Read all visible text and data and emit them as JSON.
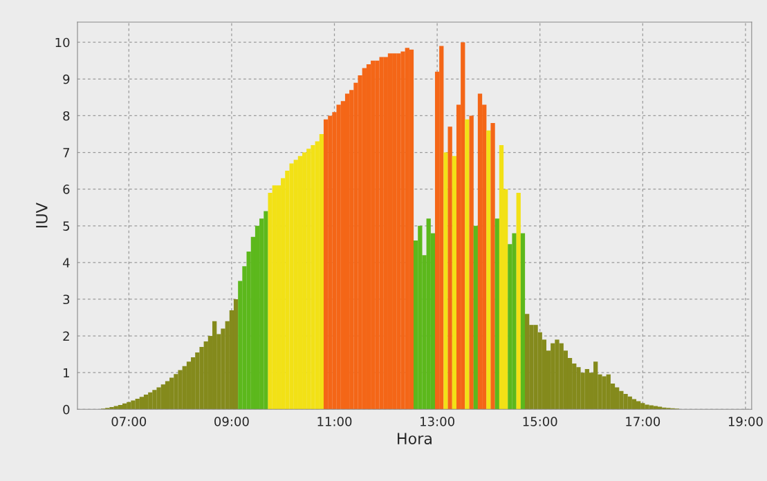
{
  "chart_data": {
    "type": "bar",
    "xlabel": "Hora",
    "ylabel": "IUV",
    "xlim": [
      6.0,
      19.12
    ],
    "ylim": [
      0,
      10.55
    ],
    "xticks": [
      {
        "value": 7,
        "label": "07:00"
      },
      {
        "value": 9,
        "label": "09:00"
      },
      {
        "value": 11,
        "label": "11:00"
      },
      {
        "value": 13,
        "label": "13:00"
      },
      {
        "value": 15,
        "label": "15:00"
      },
      {
        "value": 17,
        "label": "17:00"
      },
      {
        "value": 19,
        "label": "19:00"
      }
    ],
    "yticks": [
      0,
      1,
      2,
      3,
      4,
      5,
      6,
      7,
      8,
      9,
      10
    ],
    "grid": true,
    "legend": false,
    "x": [
      6.5,
      6.583,
      6.667,
      6.75,
      6.833,
      6.917,
      7.0,
      7.083,
      7.167,
      7.25,
      7.333,
      7.417,
      7.5,
      7.583,
      7.667,
      7.75,
      7.833,
      7.917,
      8.0,
      8.083,
      8.167,
      8.25,
      8.333,
      8.417,
      8.5,
      8.583,
      8.667,
      8.75,
      8.833,
      8.917,
      9.0,
      9.083,
      9.167,
      9.25,
      9.333,
      9.417,
      9.5,
      9.583,
      9.667,
      9.75,
      9.833,
      9.917,
      10.0,
      10.083,
      10.167,
      10.25,
      10.333,
      10.417,
      10.5,
      10.583,
      10.667,
      10.75,
      10.833,
      10.917,
      11.0,
      11.083,
      11.167,
      11.25,
      11.333,
      11.417,
      11.5,
      11.583,
      11.667,
      11.75,
      11.833,
      11.917,
      12.0,
      12.083,
      12.167,
      12.25,
      12.333,
      12.417,
      12.5,
      12.583,
      12.667,
      12.75,
      12.833,
      12.917,
      13.0,
      13.083,
      13.167,
      13.25,
      13.333,
      13.417,
      13.5,
      13.583,
      13.667,
      13.75,
      13.833,
      13.917,
      14.0,
      14.083,
      14.167,
      14.25,
      14.333,
      14.417,
      14.5,
      14.583,
      14.667,
      14.75,
      14.833,
      14.917,
      15.0,
      15.083,
      15.167,
      15.25,
      15.333,
      15.417,
      15.5,
      15.583,
      15.667,
      15.75,
      15.833,
      15.917,
      16.0,
      16.083,
      16.167,
      16.25,
      16.333,
      16.417,
      16.5,
      16.583,
      16.667,
      16.75,
      16.833,
      16.917,
      17.0,
      17.083,
      17.167,
      17.25,
      17.333,
      17.417,
      17.5,
      17.583,
      17.667
    ],
    "values": [
      0.02,
      0.04,
      0.06,
      0.09,
      0.12,
      0.16,
      0.2,
      0.24,
      0.29,
      0.34,
      0.4,
      0.46,
      0.53,
      0.6,
      0.68,
      0.77,
      0.86,
      0.96,
      1.07,
      1.18,
      1.3,
      1.42,
      1.55,
      1.7,
      1.85,
      2.0,
      2.4,
      2.05,
      2.2,
      2.4,
      2.7,
      3.0,
      3.5,
      3.9,
      4.3,
      4.7,
      5.0,
      5.2,
      5.4,
      5.9,
      6.1,
      6.1,
      6.3,
      6.5,
      6.7,
      6.8,
      6.9,
      7.0,
      7.1,
      7.2,
      7.3,
      7.5,
      7.9,
      8.0,
      8.1,
      8.3,
      8.4,
      8.6,
      8.7,
      8.9,
      9.1,
      9.3,
      9.4,
      9.5,
      9.5,
      9.6,
      9.6,
      9.7,
      9.7,
      9.7,
      9.75,
      9.85,
      9.8,
      4.6,
      5.0,
      4.2,
      5.2,
      4.8,
      9.2,
      9.9,
      7.0,
      7.7,
      6.9,
      8.3,
      10.0,
      7.9,
      8.0,
      5.0,
      8.6,
      8.3,
      7.6,
      7.8,
      5.2,
      7.2,
      6.0,
      4.5,
      4.8,
      5.9,
      4.8,
      2.6,
      2.3,
      2.3,
      2.1,
      1.9,
      1.6,
      1.8,
      1.9,
      1.8,
      1.6,
      1.4,
      1.25,
      1.15,
      1.0,
      1.1,
      1.0,
      1.3,
      0.95,
      0.9,
      0.95,
      0.7,
      0.6,
      0.5,
      0.42,
      0.35,
      0.28,
      0.22,
      0.17,
      0.13,
      0.11,
      0.09,
      0.07,
      0.05,
      0.04,
      0.03,
      0.02
    ],
    "colors": [
      "#848a1c",
      "#848a1c",
      "#848a1c",
      "#848a1c",
      "#848a1c",
      "#848a1c",
      "#848a1c",
      "#848a1c",
      "#848a1c",
      "#848a1c",
      "#848a1c",
      "#848a1c",
      "#848a1c",
      "#848a1c",
      "#848a1c",
      "#848a1c",
      "#848a1c",
      "#848a1c",
      "#848a1c",
      "#848a1c",
      "#848a1c",
      "#848a1c",
      "#848a1c",
      "#848a1c",
      "#848a1c",
      "#848a1c",
      "#848a1c",
      "#848a1c",
      "#848a1c",
      "#848a1c",
      "#848a1c",
      "#848a1c",
      "#5cb81c",
      "#5cb81c",
      "#5cb81c",
      "#5cb81c",
      "#5cb81c",
      "#5cb81c",
      "#5cb81c",
      "#f2e116",
      "#f2e116",
      "#f2e116",
      "#f2e116",
      "#f2e116",
      "#f2e116",
      "#f2e116",
      "#f2e116",
      "#f2e116",
      "#f2e116",
      "#f2e116",
      "#f2e116",
      "#f2e116",
      "#f46617",
      "#f46617",
      "#f46617",
      "#f46617",
      "#f46617",
      "#f46617",
      "#f46617",
      "#f46617",
      "#f46617",
      "#f46617",
      "#f46617",
      "#f46617",
      "#f46617",
      "#f46617",
      "#f46617",
      "#f46617",
      "#f46617",
      "#f46617",
      "#f46617",
      "#f46617",
      "#f46617",
      "#5cb81c",
      "#5cb81c",
      "#5cb81c",
      "#5cb81c",
      "#5cb81c",
      "#f46617",
      "#f46617",
      "#f2e116",
      "#f46617",
      "#f2e116",
      "#f46617",
      "#f46617",
      "#f2e116",
      "#f46617",
      "#5cb81c",
      "#f46617",
      "#f46617",
      "#f2e116",
      "#f46617",
      "#5cb81c",
      "#f2e116",
      "#f2e116",
      "#5cb81c",
      "#5cb81c",
      "#f2e116",
      "#5cb81c",
      "#848a1c",
      "#848a1c",
      "#848a1c",
      "#848a1c",
      "#848a1c",
      "#848a1c",
      "#848a1c",
      "#848a1c",
      "#848a1c",
      "#848a1c",
      "#848a1c",
      "#848a1c",
      "#848a1c",
      "#848a1c",
      "#848a1c",
      "#848a1c",
      "#848a1c",
      "#848a1c",
      "#848a1c",
      "#848a1c",
      "#848a1c",
      "#848a1c",
      "#848a1c",
      "#848a1c",
      "#848a1c",
      "#848a1c",
      "#848a1c",
      "#848a1c",
      "#848a1c",
      "#848a1c",
      "#848a1c",
      "#848a1c",
      "#848a1c",
      "#848a1c",
      "#848a1c",
      "#848a1c"
    ]
  }
}
